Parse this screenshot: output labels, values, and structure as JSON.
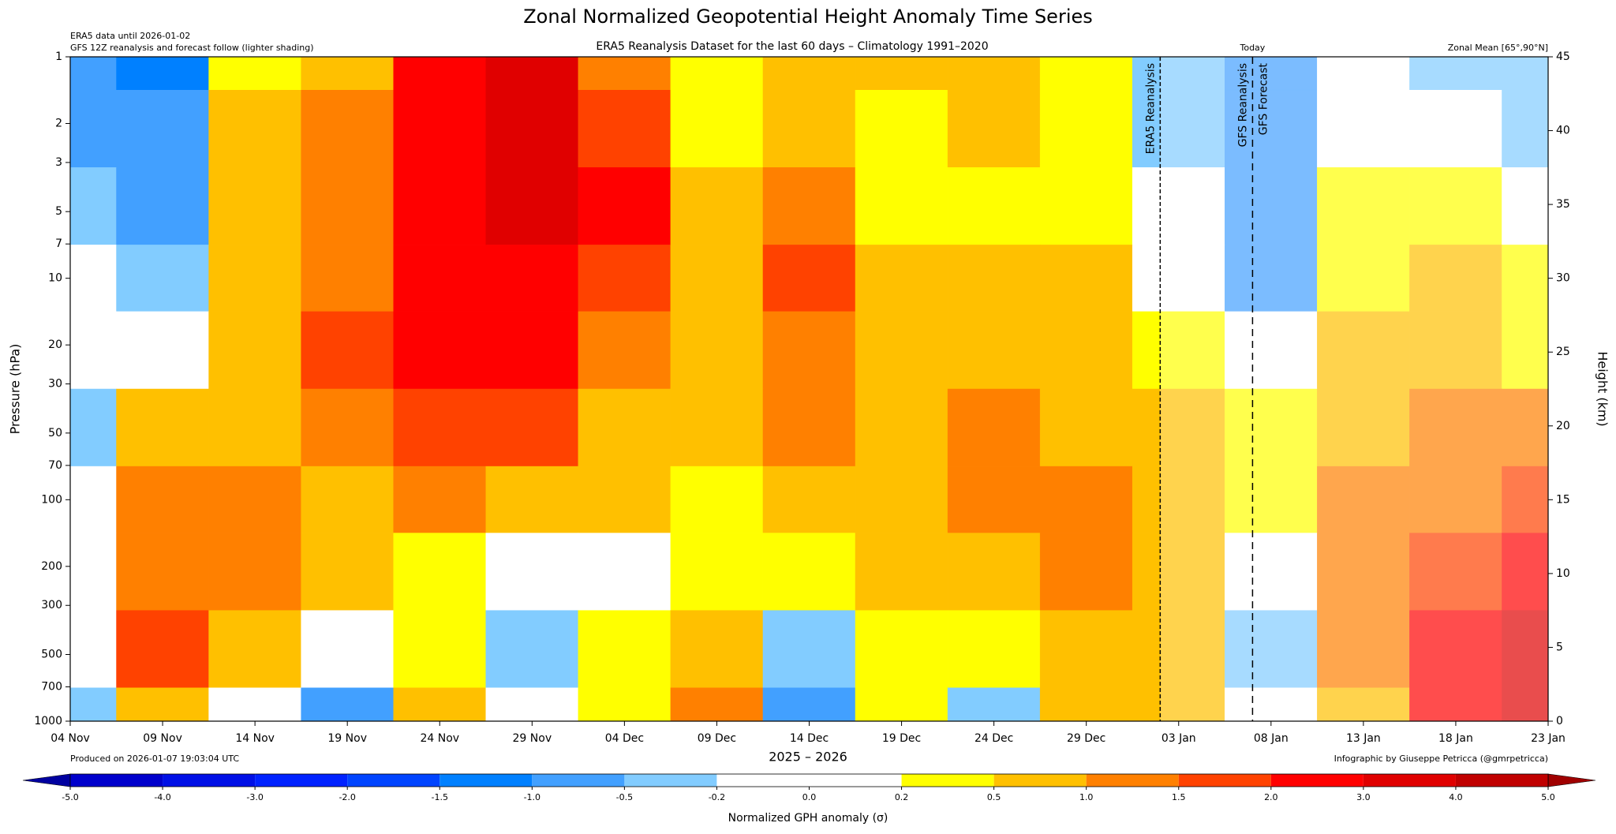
{
  "chart_data": {
    "type": "heatmap",
    "title": "Zonal Normalized Geopotential Height Anomaly Time Series",
    "subtitle": "ERA5 Reanalysis Dataset for the last 60 days – Climatology 1991–2020",
    "notes": [
      "ERA5 data until 2026-01-02",
      "GFS 12Z reanalysis and forecast follow (lighter shading)"
    ],
    "region": "Zonal Mean [65°,90°N]",
    "produced": "Produced on 2026-01-07 19:03:04 UTC",
    "credit": "Infographic by Giuseppe Petricca (@gmrpetricca)",
    "x_label": "2025 – 2026",
    "y_label": "Pressure (hPa)",
    "y2_label": "Height (km)",
    "xlim": [
      0,
      80
    ],
    "xticks": [
      {
        "value": 0,
        "label": "04 Nov"
      },
      {
        "value": 5,
        "label": "09 Nov"
      },
      {
        "value": 10,
        "label": "14 Nov"
      },
      {
        "value": 15,
        "label": "19 Nov"
      },
      {
        "value": 20,
        "label": "24 Nov"
      },
      {
        "value": 25,
        "label": "29 Nov"
      },
      {
        "value": 30,
        "label": "04 Dec"
      },
      {
        "value": 35,
        "label": "09 Dec"
      },
      {
        "value": 40,
        "label": "14 Dec"
      },
      {
        "value": 45,
        "label": "19 Dec"
      },
      {
        "value": 50,
        "label": "24 Dec"
      },
      {
        "value": 55,
        "label": "29 Dec"
      },
      {
        "value": 60,
        "label": "03 Jan"
      },
      {
        "value": 65,
        "label": "08 Jan"
      },
      {
        "value": 70,
        "label": "13 Jan"
      },
      {
        "value": 75,
        "label": "18 Jan"
      },
      {
        "value": 80,
        "label": "23 Jan"
      }
    ],
    "ylim": [
      1000,
      1
    ],
    "y_scale": "log",
    "yticks": [
      1,
      2,
      3,
      5,
      7,
      10,
      20,
      30,
      50,
      70,
      100,
      200,
      300,
      500,
      700,
      1000
    ],
    "y2lim": [
      0,
      45
    ],
    "y2ticks": [
      0,
      5,
      10,
      15,
      20,
      25,
      30,
      35,
      40,
      45
    ],
    "vlines": [
      {
        "x": 59,
        "labels": [
          "ERA5 Reanalysis"
        ]
      },
      {
        "x": 64,
        "top_label": "Today",
        "labels": [
          "GFS Reanalysis",
          "GFS Forecast"
        ]
      }
    ],
    "x": [
      0,
      5,
      10,
      15,
      20,
      25,
      30,
      35,
      40,
      45,
      50,
      55,
      60,
      65,
      70,
      75,
      80
    ],
    "y": [
      1,
      2,
      5,
      10,
      20,
      50,
      100,
      200,
      500,
      1000
    ],
    "z": [
      [
        -0.7,
        -1.2,
        0.3,
        0.7,
        2.5,
        3.2,
        1.2,
        0.3,
        0.7,
        0.7,
        0.7,
        0.3,
        -0.3,
        -0.7,
        0.1,
        -0.3,
        -0.3
      ],
      [
        -0.7,
        -0.7,
        0.7,
        1.2,
        2.5,
        3.2,
        1.7,
        0.3,
        0.7,
        0.3,
        0.7,
        0.3,
        -0.3,
        -0.7,
        0.1,
        0.1,
        -0.3
      ],
      [
        -0.3,
        -0.7,
        0.7,
        1.2,
        2.5,
        3.2,
        2.5,
        0.7,
        1.2,
        0.3,
        0.3,
        0.3,
        -0.1,
        -0.7,
        0.3,
        0.3,
        0.1
      ],
      [
        0.1,
        -0.3,
        0.7,
        1.2,
        2.5,
        2.5,
        1.7,
        0.7,
        1.7,
        0.7,
        0.7,
        0.7,
        0.1,
        -0.7,
        0.3,
        0.7,
        0.3
      ],
      [
        0.1,
        0.1,
        0.7,
        1.7,
        2.5,
        2.5,
        1.2,
        0.7,
        1.2,
        0.7,
        0.7,
        0.7,
        0.3,
        0.1,
        0.7,
        0.7,
        0.3
      ],
      [
        -0.3,
        0.7,
        0.7,
        1.2,
        1.7,
        1.7,
        0.7,
        0.7,
        1.2,
        0.7,
        1.2,
        0.7,
        0.7,
        0.3,
        0.7,
        1.2,
        1.2
      ],
      [
        0.1,
        1.2,
        1.2,
        0.7,
        1.2,
        0.7,
        0.7,
        0.3,
        0.7,
        0.7,
        1.2,
        1.2,
        0.7,
        0.3,
        1.2,
        1.2,
        1.7
      ],
      [
        0,
        1.2,
        1.2,
        0.7,
        0.3,
        0.1,
        0.1,
        0.3,
        0.3,
        0.7,
        0.7,
        1.2,
        0.7,
        0.1,
        1.2,
        1.7,
        2.5
      ],
      [
        0.1,
        1.7,
        0.7,
        0.1,
        0.3,
        -0.3,
        0.3,
        0.7,
        -0.3,
        0.3,
        0.3,
        0.7,
        0.7,
        -0.3,
        1.2,
        2.5,
        3.2
      ],
      [
        -0.3,
        0.7,
        0.1,
        -0.7,
        0.7,
        0.1,
        0.3,
        1.2,
        -0.7,
        0.3,
        -0.3,
        0.7,
        0.7,
        0.1,
        0.7,
        2.5,
        3.2
      ]
    ],
    "colorbar": {
      "label": "Normalized GPH anomaly (σ)",
      "levels": [
        {
          "value": -5,
          "label": "-5.0"
        },
        {
          "value": -4,
          "label": "-4.0"
        },
        {
          "value": -3,
          "label": "-3.0"
        },
        {
          "value": -2,
          "label": "-2.0"
        },
        -1.5,
        {
          "value": -1,
          "label": "-1.0"
        },
        -0.5,
        -0.2,
        {
          "value": 0,
          "label": "0.0"
        },
        0.2,
        0.5,
        {
          "value": 1,
          "label": "1.0"
        },
        1.5,
        {
          "value": 2,
          "label": "2.0"
        },
        {
          "value": 3,
          "label": "3.0"
        },
        {
          "value": 4,
          "label": "4.0"
        },
        {
          "value": 5,
          "label": "5.0"
        }
      ],
      "colors": [
        "#0000cc",
        "#0010e6",
        "#0022ff",
        "#0044ff",
        "#0080ff",
        "#42a0ff",
        "#82ccff",
        "#ffffff",
        "#ffffff",
        "#ffff00",
        "#ffc000",
        "#ff8000",
        "#ff4200",
        "#ff0000",
        "#e00000",
        "#c00000"
      ],
      "under": "#0000a0",
      "over": "#a00000"
    }
  }
}
